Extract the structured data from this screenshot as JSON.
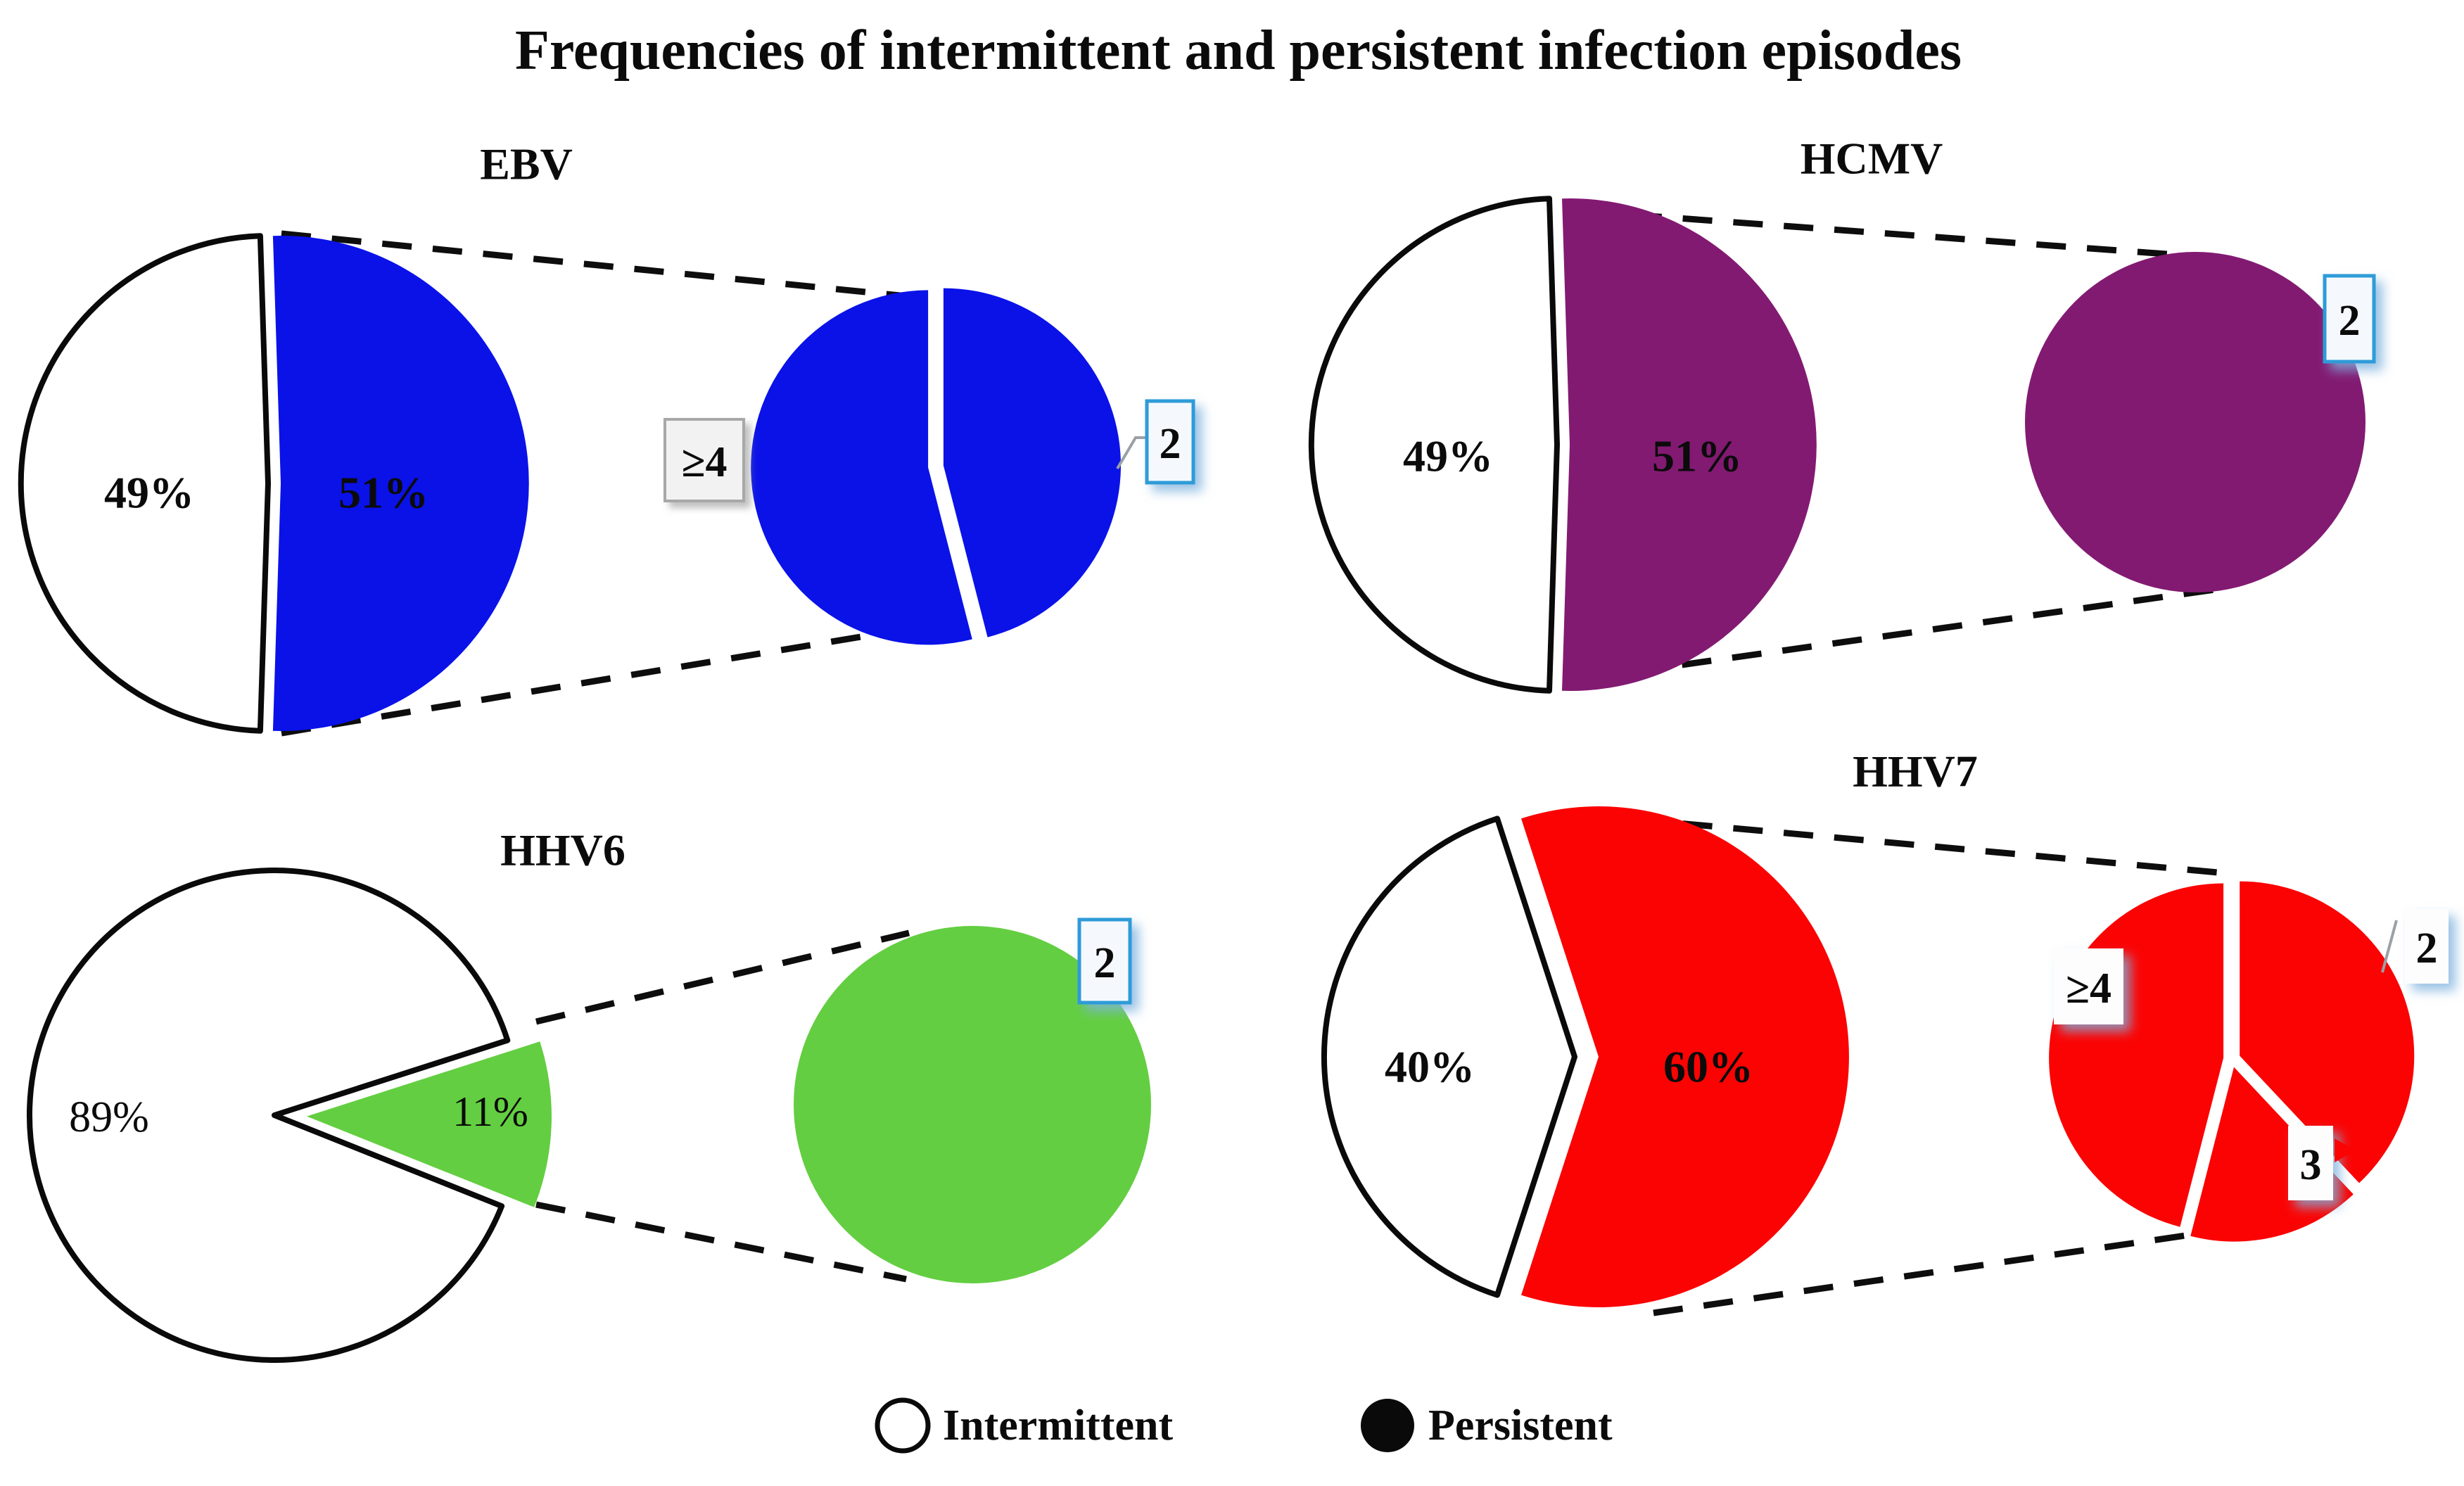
{
  "title": "Frequencies of intermittent and persistent infection episodes",
  "legend": [
    {
      "label": "Intermittent",
      "swatch": "open-circle"
    },
    {
      "label": "Persistent",
      "swatch": "filled-circle"
    }
  ],
  "colors": {
    "ebv_blue": "#0A12E8",
    "hcmv_purple": "#821A72",
    "hhv6_green": "#63CE41",
    "hhv7_red": "#FB0303",
    "callout_border_blue": "#2E9BD8",
    "callout_box_fill": "#F5F9FD",
    "gray_box_fill": "#F2F2F2",
    "gray_box_border": "#A8A8A8",
    "outline_black": "#0a0a0a"
  },
  "chart_data": [
    {
      "type": "pie",
      "virus": "EBV",
      "persistent_color": "#0A12E8",
      "main": {
        "slices": [
          {
            "category": "Persistent",
            "pct": 51,
            "label": "51%",
            "label_color": "#ffffff"
          },
          {
            "category": "Intermittent",
            "pct": 49,
            "label": "49%",
            "label_color": "#000000"
          }
        ]
      },
      "zoom": {
        "note": "breakdown of persistent infection episodes",
        "slices": [
          {
            "label": "2",
            "frac": 0.46
          },
          {
            "label": "≥4",
            "frac": 0.54
          }
        ]
      }
    },
    {
      "type": "pie",
      "virus": "HCMV",
      "persistent_color": "#821A72",
      "main": {
        "slices": [
          {
            "category": "Persistent",
            "pct": 51,
            "label": "51%",
            "label_color": "#ffffff"
          },
          {
            "category": "Intermittent",
            "pct": 49,
            "label": "49%",
            "label_color": "#000000"
          }
        ]
      },
      "zoom": {
        "note": "breakdown of persistent infection episodes",
        "slices": [
          {
            "label": "2",
            "frac": 1.0
          }
        ]
      }
    },
    {
      "type": "pie",
      "virus": "HHV6",
      "persistent_color": "#63CE41",
      "main": {
        "slices": [
          {
            "category": "Persistent",
            "pct": 11,
            "label": "11%",
            "label_color": "#000000"
          },
          {
            "category": "Intermittent",
            "pct": 89,
            "label": "89%",
            "label_color": "#000000"
          }
        ]
      },
      "zoom": {
        "note": "breakdown of persistent infection episodes",
        "slices": [
          {
            "label": "2",
            "frac": 1.0
          }
        ]
      }
    },
    {
      "type": "pie",
      "virus": "HHV7",
      "persistent_color": "#FB0303",
      "main": {
        "slices": [
          {
            "category": "Persistent",
            "pct": 60,
            "label": "60%",
            "label_color": "#000000"
          },
          {
            "category": "Intermittent",
            "pct": 40,
            "label": "40%",
            "label_color": "#000000"
          }
        ]
      },
      "zoom": {
        "note": "breakdown of persistent infection episodes",
        "slices": [
          {
            "label": "2",
            "frac": 0.38
          },
          {
            "label": "3",
            "frac": 0.16
          },
          {
            "label": "≥4",
            "frac": 0.46
          }
        ]
      }
    }
  ]
}
